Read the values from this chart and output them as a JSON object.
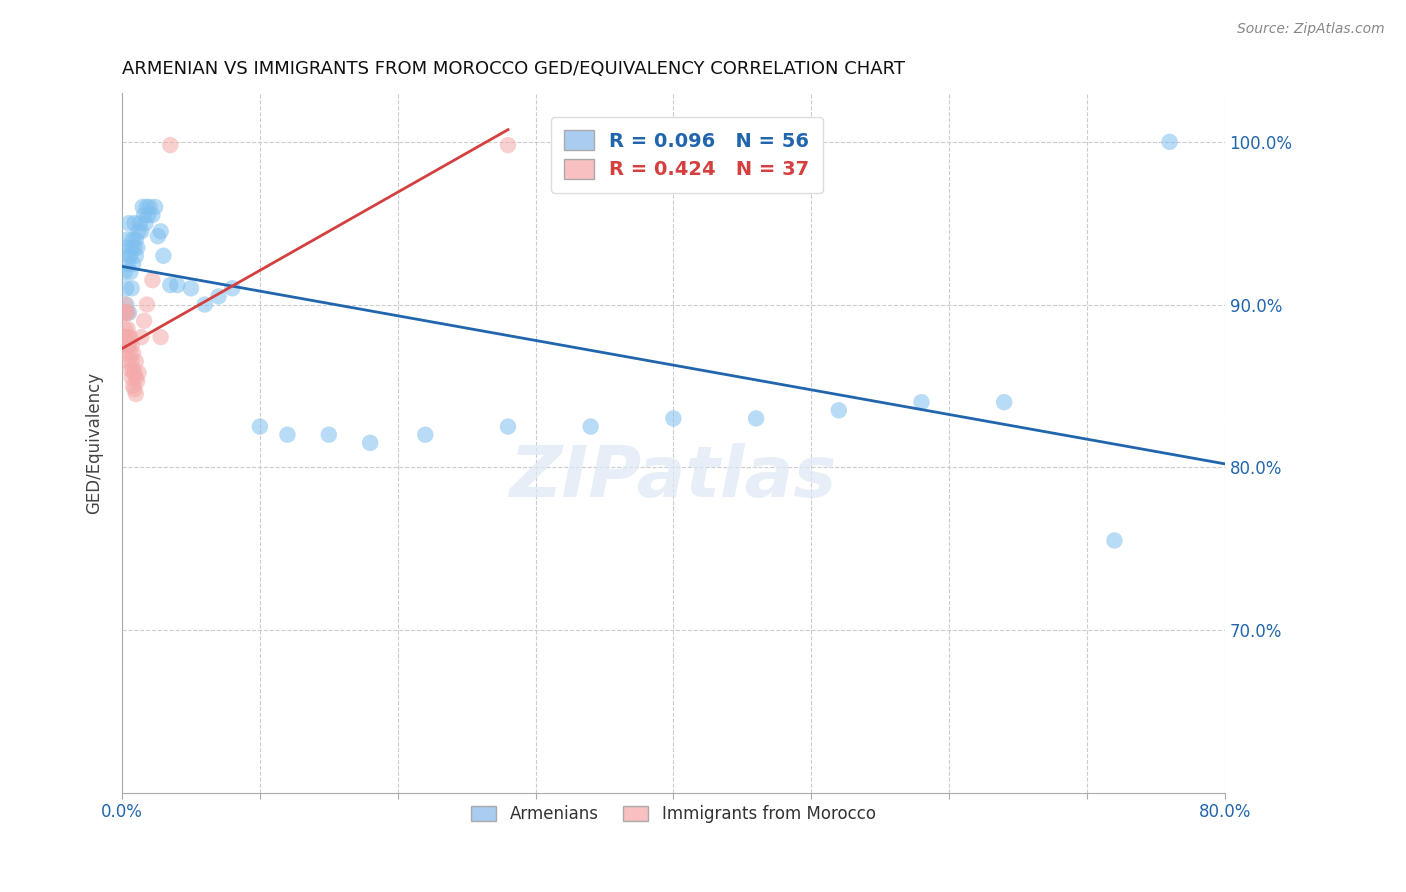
{
  "title": "ARMENIAN VS IMMIGRANTS FROM MOROCCO GED/EQUIVALENCY CORRELATION CHART",
  "source": "Source: ZipAtlas.com",
  "ylabel": "GED/Equivalency",
  "x_min": 0.0,
  "x_max": 0.8,
  "y_min": 0.6,
  "y_max": 1.03,
  "x_ticks": [
    0.0,
    0.1,
    0.2,
    0.3,
    0.4,
    0.5,
    0.6,
    0.7,
    0.8
  ],
  "x_tick_labels": [
    "0.0%",
    "",
    "",
    "",
    "",
    "",
    "",
    "",
    "80.0%"
  ],
  "y_ticks": [
    0.7,
    0.8,
    0.9,
    1.0
  ],
  "y_tick_labels": [
    "70.0%",
    "80.0%",
    "90.0%",
    "100.0%"
  ],
  "armenian_R": 0.096,
  "armenian_N": 56,
  "morocco_R": 0.424,
  "morocco_N": 37,
  "armenian_color": "#7fbfef",
  "morocco_color": "#f4aaaa",
  "trendline_armenian_color": "#2166ac",
  "trendline_morocco_color": "#d44040",
  "armenian_x": [
    0.001,
    0.002,
    0.002,
    0.003,
    0.003,
    0.003,
    0.004,
    0.004,
    0.005,
    0.005,
    0.005,
    0.006,
    0.006,
    0.007,
    0.007,
    0.008,
    0.008,
    0.009,
    0.009,
    0.01,
    0.01,
    0.011,
    0.012,
    0.013,
    0.014,
    0.015,
    0.016,
    0.017,
    0.018,
    0.019,
    0.02,
    0.022,
    0.024,
    0.026,
    0.028,
    0.03,
    0.035,
    0.04,
    0.05,
    0.06,
    0.07,
    0.08,
    0.1,
    0.12,
    0.15,
    0.18,
    0.22,
    0.28,
    0.34,
    0.4,
    0.46,
    0.52,
    0.58,
    0.64,
    0.72,
    0.76
  ],
  "armenian_y": [
    0.88,
    0.92,
    0.935,
    0.9,
    0.895,
    0.91,
    0.925,
    0.94,
    0.93,
    0.895,
    0.95,
    0.92,
    0.93,
    0.91,
    0.935,
    0.94,
    0.925,
    0.935,
    0.95,
    0.94,
    0.93,
    0.935,
    0.945,
    0.95,
    0.945,
    0.96,
    0.955,
    0.95,
    0.96,
    0.955,
    0.96,
    0.955,
    0.96,
    0.942,
    0.945,
    0.93,
    0.912,
    0.912,
    0.91,
    0.9,
    0.905,
    0.91,
    0.825,
    0.82,
    0.82,
    0.815,
    0.82,
    0.825,
    0.825,
    0.83,
    0.83,
    0.835,
    0.84,
    0.84,
    0.755,
    1.0
  ],
  "morocco_x": [
    0.001,
    0.001,
    0.002,
    0.002,
    0.002,
    0.003,
    0.003,
    0.003,
    0.004,
    0.004,
    0.004,
    0.005,
    0.005,
    0.005,
    0.006,
    0.006,
    0.006,
    0.007,
    0.007,
    0.007,
    0.008,
    0.008,
    0.008,
    0.009,
    0.009,
    0.01,
    0.01,
    0.01,
    0.011,
    0.012,
    0.014,
    0.016,
    0.018,
    0.022,
    0.028,
    0.035,
    0.28
  ],
  "morocco_y": [
    0.88,
    0.895,
    0.875,
    0.885,
    0.9,
    0.87,
    0.88,
    0.895,
    0.875,
    0.885,
    0.895,
    0.865,
    0.875,
    0.88,
    0.86,
    0.87,
    0.88,
    0.855,
    0.865,
    0.875,
    0.85,
    0.86,
    0.87,
    0.848,
    0.858,
    0.845,
    0.855,
    0.865,
    0.853,
    0.858,
    0.88,
    0.89,
    0.9,
    0.915,
    0.88,
    0.998,
    0.998
  ],
  "background_color": "#ffffff",
  "grid_color": "#cccccc",
  "legend_color_armenian": "#aaccf0",
  "legend_color_morocco": "#f8c0c0"
}
